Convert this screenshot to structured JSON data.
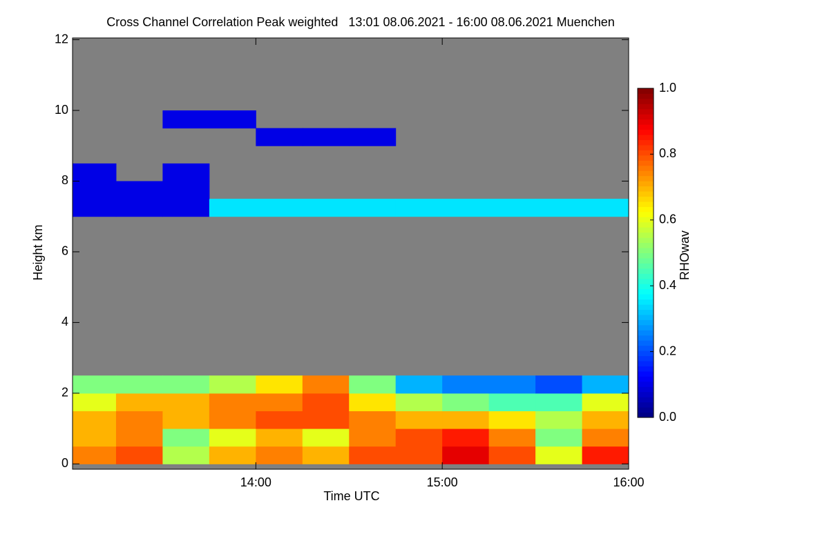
{
  "chart_data": {
    "type": "heatmap",
    "title": "Cross Channel Correlation Peak weighted   13:01 08.06.2021 - 16:00 08.06.2021 Muenchen",
    "x_label": "Time UTC",
    "y_label": "Height km",
    "colorbar_label": "RHOwav",
    "colormap": "jet",
    "background": "#808080",
    "xlim": [
      13.0167,
      16.0
    ],
    "ylim": [
      -0.15,
      12.05
    ],
    "xticks": [
      {
        "value": 14,
        "label": "14:00"
      },
      {
        "value": 15,
        "label": "15:00"
      },
      {
        "value": 16,
        "label": "16:00"
      }
    ],
    "yticks": [
      0,
      2,
      4,
      6,
      8,
      10,
      12
    ],
    "clim": [
      0,
      1
    ],
    "cticks": [
      {
        "value": 0,
        "label": "0.0"
      },
      {
        "value": 0.2,
        "label": "0.2"
      },
      {
        "value": 0.4,
        "label": "0.4"
      },
      {
        "value": 0.6,
        "label": "0.6"
      },
      {
        "value": 0.8,
        "label": "0.8"
      },
      {
        "value": 1,
        "label": "1.0"
      }
    ],
    "x_edges": [
      13.0167,
      13.25,
      13.5,
      13.75,
      14,
      14.25,
      14.5,
      14.75,
      15,
      15.25,
      15.5,
      15.75,
      16
    ],
    "y_edges": [
      0,
      0.5,
      1,
      1.5,
      2,
      2.5,
      3,
      3.5,
      4,
      4.5,
      5,
      5.5,
      6,
      6.5,
      7,
      7.5,
      8,
      8.5,
      9,
      9.5,
      10,
      10.5,
      11,
      11.5,
      12
    ],
    "z": [
      [
        0.75,
        0.8,
        0.55,
        0.7,
        0.75,
        0.7,
        0.8,
        0.8,
        0.9,
        0.8,
        0.6,
        0.85
      ],
      [
        0.7,
        0.75,
        0.5,
        0.6,
        0.7,
        0.6,
        0.75,
        0.8,
        0.85,
        0.75,
        0.5,
        0.75
      ],
      [
        0.7,
        0.75,
        0.7,
        0.75,
        0.8,
        0.8,
        0.75,
        0.7,
        0.7,
        0.65,
        0.55,
        0.7
      ],
      [
        0.6,
        0.7,
        0.7,
        0.75,
        0.75,
        0.8,
        0.65,
        0.55,
        0.5,
        0.45,
        0.45,
        0.6
      ],
      [
        0.5,
        0.5,
        0.5,
        0.55,
        0.65,
        0.75,
        0.5,
        0.3,
        0.25,
        0.25,
        0.2,
        0.3
      ],
      [
        null,
        null,
        null,
        null,
        null,
        null,
        null,
        null,
        null,
        null,
        null,
        null
      ],
      [
        null,
        null,
        null,
        null,
        null,
        null,
        null,
        null,
        null,
        null,
        null,
        null
      ],
      [
        null,
        null,
        null,
        null,
        null,
        null,
        null,
        null,
        null,
        null,
        null,
        null
      ],
      [
        null,
        null,
        null,
        null,
        null,
        null,
        null,
        null,
        null,
        null,
        null,
        null
      ],
      [
        null,
        null,
        null,
        null,
        null,
        null,
        null,
        null,
        null,
        null,
        null,
        null
      ],
      [
        null,
        null,
        null,
        null,
        null,
        null,
        null,
        null,
        null,
        null,
        null,
        null
      ],
      [
        null,
        null,
        null,
        null,
        null,
        null,
        null,
        null,
        null,
        null,
        null,
        null
      ],
      [
        null,
        null,
        null,
        null,
        null,
        null,
        null,
        null,
        null,
        null,
        null,
        null
      ],
      [
        null,
        null,
        null,
        null,
        null,
        null,
        null,
        null,
        null,
        null,
        null,
        null
      ],
      [
        0.1,
        0.1,
        0.1,
        0.35,
        0.35,
        0.35,
        0.35,
        0.35,
        0.35,
        0.35,
        0.35,
        0.35
      ],
      [
        0.1,
        0.1,
        0.1,
        null,
        null,
        null,
        null,
        null,
        null,
        null,
        null,
        null
      ],
      [
        0.1,
        null,
        0.1,
        null,
        null,
        null,
        null,
        null,
        null,
        null,
        null,
        null
      ],
      [
        null,
        null,
        null,
        null,
        null,
        null,
        null,
        null,
        null,
        null,
        null,
        null
      ],
      [
        null,
        null,
        null,
        null,
        0.1,
        0.1,
        0.1,
        null,
        null,
        null,
        null,
        null
      ],
      [
        null,
        null,
        0.1,
        0.1,
        null,
        null,
        null,
        null,
        null,
        null,
        null,
        null
      ],
      [
        null,
        null,
        null,
        null,
        null,
        null,
        null,
        null,
        null,
        null,
        null,
        null
      ],
      [
        null,
        null,
        null,
        null,
        null,
        null,
        null,
        null,
        null,
        null,
        null,
        null
      ],
      [
        null,
        null,
        null,
        null,
        null,
        null,
        null,
        null,
        null,
        null,
        null,
        null
      ],
      [
        null,
        null,
        null,
        null,
        null,
        null,
        null,
        null,
        null,
        null,
        null,
        null
      ]
    ]
  }
}
